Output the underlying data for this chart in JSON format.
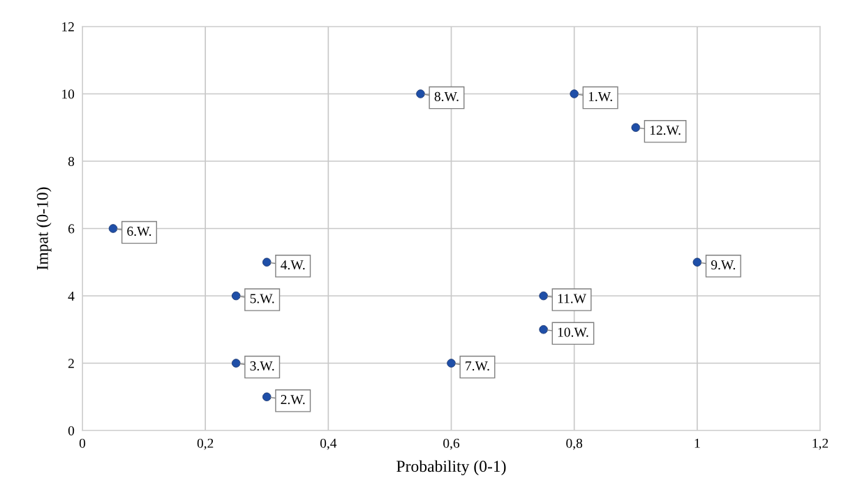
{
  "chart_data": {
    "type": "scatter",
    "xlabel": "Probability (0-1)",
    "ylabel": "Impat (0-10)",
    "x": [
      0.8,
      0.3,
      0.25,
      0.3,
      0.25,
      0.05,
      0.6,
      0.55,
      1,
      0.75,
      0.75,
      0.9
    ],
    "values": [
      10,
      1,
      2,
      5,
      4,
      6,
      2,
      10,
      5,
      3,
      4,
      9
    ],
    "color": "#1f4fa8",
    "marker": "circle",
    "grid": true,
    "xlim": [
      0,
      1.2
    ],
    "ylim": [
      0,
      12
    ],
    "xticks": [
      0,
      {
        "value": 0.2,
        "label": "0,2"
      },
      {
        "value": 0.4,
        "label": "0,4"
      },
      {
        "value": 0.6,
        "label": "0,6"
      },
      {
        "value": 0.8,
        "label": "0,8"
      },
      1,
      {
        "value": 1.2,
        "label": "1,2"
      }
    ],
    "yticks": [
      0,
      2,
      4,
      6,
      8,
      10,
      12
    ],
    "annotations": [
      {
        "text": "1.W.",
        "x": 0.8,
        "y": 10
      },
      {
        "text": "2.W.",
        "x": 0.3,
        "y": 1
      },
      {
        "text": "3.W.",
        "x": 0.25,
        "y": 2
      },
      {
        "text": "4.W.",
        "x": 0.3,
        "y": 5
      },
      {
        "text": "5.W.",
        "x": 0.25,
        "y": 4
      },
      {
        "text": "6.W.",
        "x": 0.05,
        "y": 6
      },
      {
        "text": "7.W.",
        "x": 0.6,
        "y": 2
      },
      {
        "text": "8.W.",
        "x": 0.55,
        "y": 10
      },
      {
        "text": "9.W.",
        "x": 1,
        "y": 5
      },
      {
        "text": "10.W.",
        "x": 0.75,
        "y": 3
      },
      {
        "text": "11.W",
        "x": 0.75,
        "y": 4
      },
      {
        "text": "12.W.",
        "x": 0.9,
        "y": 9
      }
    ]
  }
}
